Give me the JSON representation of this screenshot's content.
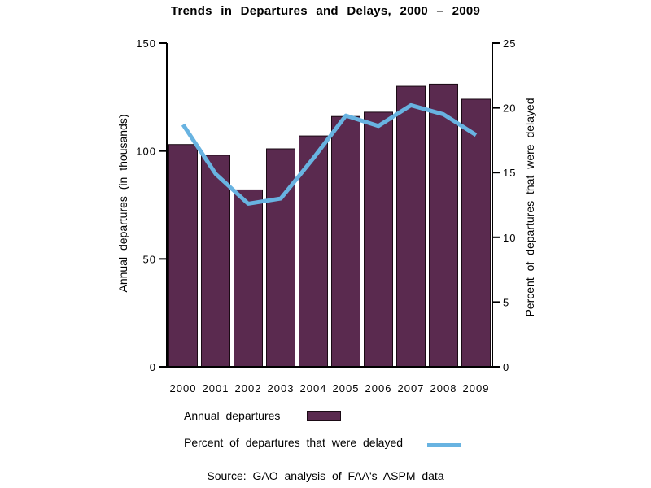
{
  "title": "Trends in Departures and Delays, 2000 – 2009",
  "source": "Source: GAO analysis of FAA's ASPM data",
  "legend": [
    {
      "label": "Annual departures",
      "swatch": "bar-swatch"
    },
    {
      "label": "Percent of departures that were delayed",
      "swatch": "line-swatch"
    }
  ],
  "colors": {
    "background": "#ffffff",
    "bar": "#5a2a4f",
    "bar_border": "#1a0a14",
    "line": "#68b3e1",
    "axis": "#000000",
    "text": "#000000"
  },
  "chart_data": {
    "type": "bar+line combo",
    "categories": [
      "2000",
      "2001",
      "2002",
      "2003",
      "2004",
      "2005",
      "2006",
      "2007",
      "2008",
      "2009"
    ],
    "series": [
      {
        "name": "Annual departures",
        "type": "bar",
        "axis": "left",
        "values": [
          103,
          98,
          82,
          101,
          107,
          116,
          118,
          130,
          131,
          124
        ]
      },
      {
        "name": "Percent of departures that were delayed",
        "type": "line",
        "axis": "right",
        "values": [
          18.7,
          14.9,
          12.6,
          13.0,
          16.1,
          19.4,
          18.6,
          20.2,
          19.5,
          17.9
        ]
      }
    ],
    "left_axis": {
      "label": "Annual departures (in thousands)",
      "ticks": [
        0,
        50,
        100,
        150
      ],
      "range": [
        0,
        150
      ]
    },
    "right_axis": {
      "label": "Percent of departures that were delayed",
      "ticks": [
        0,
        5,
        10,
        15,
        20,
        25
      ],
      "range": [
        0,
        25
      ]
    },
    "xlabel": "",
    "grid": false,
    "legend_position": "bottom-left"
  }
}
